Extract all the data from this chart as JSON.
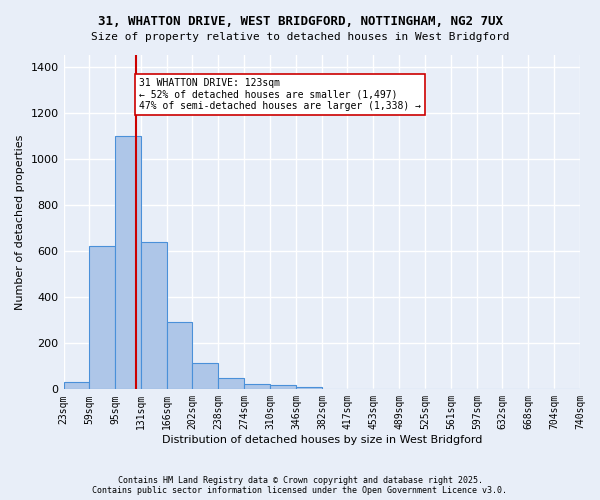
{
  "title_line1": "31, WHATTON DRIVE, WEST BRIDGFORD, NOTTINGHAM, NG2 7UX",
  "title_line2": "Size of property relative to detached houses in West Bridgford",
  "xlabel": "Distribution of detached houses by size in West Bridgford",
  "ylabel": "Number of detached properties",
  "bar_edges": [
    23,
    59,
    95,
    131,
    166,
    202,
    238,
    274,
    310,
    346,
    382,
    417,
    453,
    489,
    525,
    561,
    597,
    632,
    668,
    704,
    740
  ],
  "bar_heights": [
    30,
    620,
    1100,
    640,
    290,
    115,
    48,
    22,
    20,
    12,
    0,
    0,
    0,
    0,
    0,
    0,
    0,
    0,
    0,
    0
  ],
  "bar_color": "#aec6e8",
  "bar_edge_color": "#4a90d9",
  "bg_color": "#e8eef8",
  "grid_color": "#ffffff",
  "vline_x": 123,
  "vline_color": "#cc0000",
  "annotation_text": "31 WHATTON DRIVE: 123sqm\n← 52% of detached houses are smaller (1,497)\n47% of semi-detached houses are larger (1,338) →",
  "annotation_box_color": "#ffffff",
  "annotation_box_edge": "#cc0000",
  "ylim": [
    0,
    1450
  ],
  "yticks": [
    0,
    200,
    400,
    600,
    800,
    1000,
    1200,
    1400
  ],
  "tick_labels": [
    "23sqm",
    "59sqm",
    "95sqm",
    "131sqm",
    "166sqm",
    "202sqm",
    "238sqm",
    "274sqm",
    "310sqm",
    "346sqm",
    "382sqm",
    "417sqm",
    "453sqm",
    "489sqm",
    "525sqm",
    "561sqm",
    "597sqm",
    "632sqm",
    "668sqm",
    "704sqm",
    "740sqm"
  ],
  "footnote": "Contains HM Land Registry data © Crown copyright and database right 2025.\nContains public sector information licensed under the Open Government Licence v3.0."
}
